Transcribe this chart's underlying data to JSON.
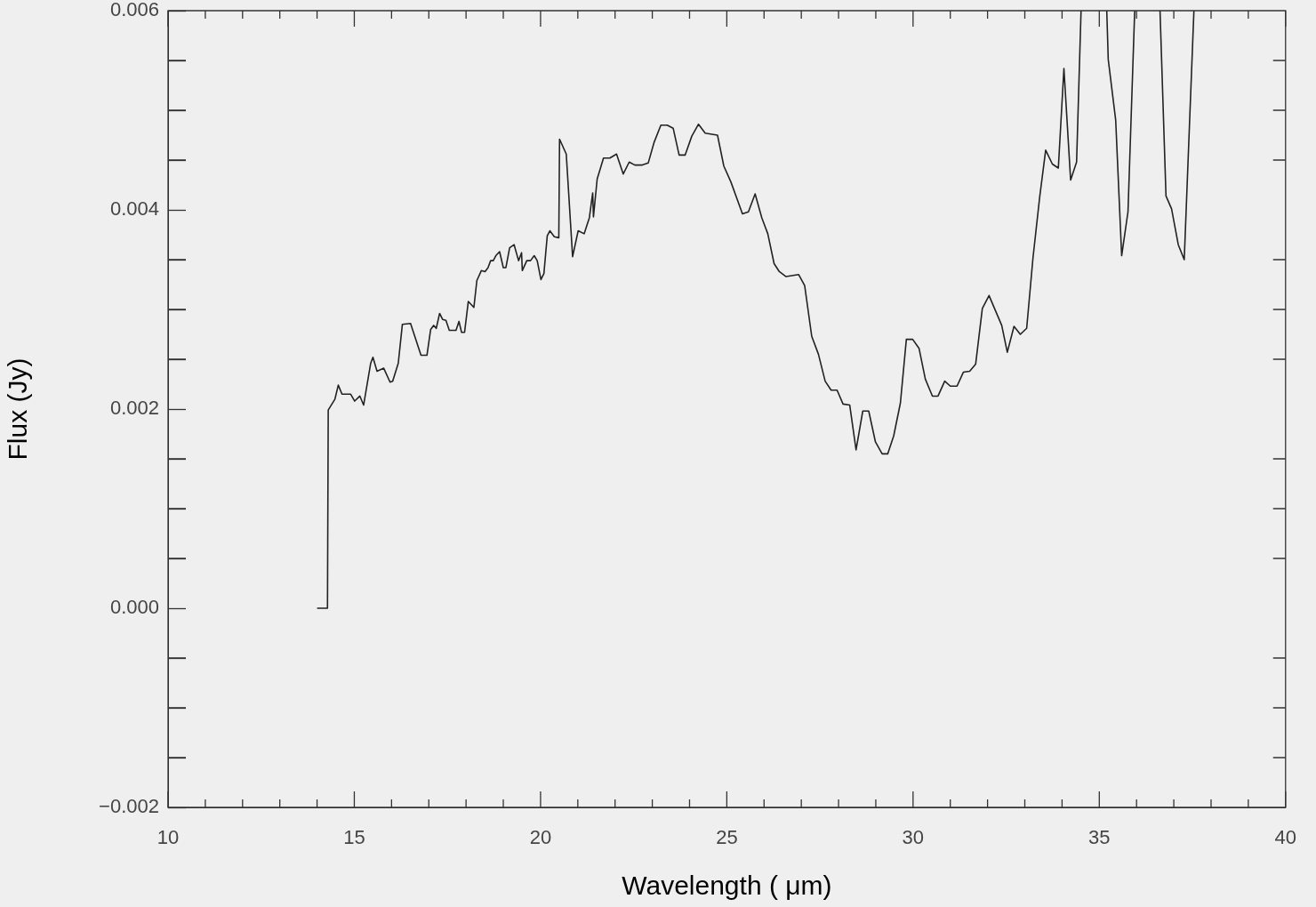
{
  "chart_data": {
    "type": "line",
    "xlabel": "Wavelength ( μm)",
    "ylabel": "Flux (Jy)",
    "legend": false,
    "marker": "none",
    "line_style": "solid",
    "xlim": [
      10,
      40
    ],
    "ylim": [
      -0.002,
      0.006
    ],
    "xticks": [
      10,
      {
        "value": 11,
        "label": null
      },
      {
        "value": 12,
        "label": null
      },
      {
        "value": 13,
        "label": null
      },
      {
        "value": 14,
        "label": null
      },
      15,
      {
        "value": 16,
        "label": null
      },
      {
        "value": 17,
        "label": null
      },
      {
        "value": 18,
        "label": null
      },
      {
        "value": 19,
        "label": null
      },
      20,
      {
        "value": 21,
        "label": null
      },
      {
        "value": 22,
        "label": null
      },
      {
        "value": 23,
        "label": null
      },
      {
        "value": 24,
        "label": null
      },
      25,
      {
        "value": 26,
        "label": null
      },
      {
        "value": 27,
        "label": null
      },
      {
        "value": 28,
        "label": null
      },
      {
        "value": 29,
        "label": null
      },
      30,
      {
        "value": 31,
        "label": null
      },
      {
        "value": 32,
        "label": null
      },
      {
        "value": 33,
        "label": null
      },
      {
        "value": 34,
        "label": null
      },
      35,
      {
        "value": 36,
        "label": null
      },
      {
        "value": 37,
        "label": null
      },
      {
        "value": 38,
        "label": null
      },
      {
        "value": 39,
        "label": null
      },
      40
    ],
    "yticks": [
      {
        "value": -0.002,
        "label": "−0.002"
      },
      {
        "value": -0.0015,
        "label": null
      },
      {
        "value": -0.001,
        "label": null
      },
      {
        "value": -0.0005,
        "label": null
      },
      {
        "value": 0,
        "label": "0.000"
      },
      {
        "value": 0.0005,
        "label": null
      },
      {
        "value": 0.001,
        "label": null
      },
      {
        "value": 0.0015,
        "label": null
      },
      {
        "value": 0.002,
        "label": "0.002"
      },
      {
        "value": 0.0025,
        "label": null
      },
      {
        "value": 0.003,
        "label": null
      },
      {
        "value": 0.0035,
        "label": null
      },
      {
        "value": 0.004,
        "label": "0.004"
      },
      {
        "value": 0.0045,
        "label": null
      },
      {
        "value": 0.005,
        "label": null
      },
      {
        "value": 0.0055,
        "label": null
      },
      {
        "value": 0.006,
        "label": "0.006"
      }
    ],
    "series": [
      {
        "color": "#222222",
        "x": [
          14.0,
          14.28,
          14.3,
          14.48,
          14.57,
          14.67,
          14.9,
          15.01,
          15.15,
          15.25,
          15.44,
          15.5,
          15.61,
          15.79,
          15.96,
          16.03,
          16.18,
          16.29,
          16.51,
          16.79,
          16.95,
          17.05,
          17.13,
          17.2,
          17.29,
          17.37,
          17.46,
          17.55,
          17.73,
          17.81,
          17.88,
          17.96,
          18.06,
          18.21,
          18.29,
          18.41,
          18.51,
          18.59,
          18.66,
          18.73,
          18.8,
          18.9,
          19.0,
          19.07,
          19.17,
          19.29,
          19.41,
          19.49,
          19.51,
          19.63,
          19.73,
          19.83,
          19.91,
          20.01,
          20.09,
          20.18,
          20.25,
          20.37,
          20.49,
          20.51,
          20.69,
          20.86,
          21.01,
          21.17,
          21.31,
          21.4,
          21.42,
          21.52,
          21.69,
          21.86,
          22.04,
          22.22,
          22.38,
          22.53,
          22.73,
          22.89,
          23.05,
          23.23,
          23.4,
          23.56,
          23.72,
          23.88,
          24.06,
          24.24,
          24.42,
          24.75,
          24.92,
          25.11,
          25.42,
          25.58,
          25.76,
          25.94,
          26.1,
          26.27,
          26.41,
          26.59,
          26.93,
          27.09,
          27.28,
          27.46,
          27.64,
          27.8,
          27.96,
          28.12,
          28.3,
          28.47,
          28.65,
          28.81,
          28.99,
          29.17,
          29.32,
          29.48,
          29.66,
          29.82,
          29.99,
          30.16,
          30.33,
          30.52,
          30.67,
          30.85,
          31.0,
          31.18,
          31.35,
          31.52,
          31.68,
          31.86,
          32.04,
          32.21,
          32.38,
          32.53,
          32.71,
          32.88,
          33.05,
          33.22,
          33.4,
          33.56,
          33.74,
          33.9,
          34.05,
          34.23,
          34.39,
          34.51,
          34.8,
          35.2,
          35.24,
          35.44,
          35.6,
          35.77,
          35.95,
          36.3,
          36.63,
          36.79,
          36.94,
          37.12,
          37.28,
          37.54
        ],
        "values": [
          0,
          0,
          0.00199,
          0.0021,
          0.00224,
          0.00215,
          0.00215,
          0.00208,
          0.00213,
          0.00204,
          0.00246,
          0.00252,
          0.00238,
          0.00241,
          0.00227,
          0.00228,
          0.00246,
          0.00285,
          0.00286,
          0.00254,
          0.00254,
          0.0028,
          0.00284,
          0.00281,
          0.00296,
          0.0029,
          0.00289,
          0.00279,
          0.00279,
          0.00288,
          0.00277,
          0.00277,
          0.00308,
          0.00302,
          0.00329,
          0.00339,
          0.00338,
          0.00342,
          0.00349,
          0.00349,
          0.00354,
          0.00358,
          0.00342,
          0.00342,
          0.00362,
          0.00365,
          0.00349,
          0.00357,
          0.00339,
          0.00349,
          0.00349,
          0.00354,
          0.00349,
          0.0033,
          0.00336,
          0.00374,
          0.00379,
          0.00373,
          0.00372,
          0.00471,
          0.00456,
          0.00353,
          0.00379,
          0.00376,
          0.00392,
          0.00417,
          0.00393,
          0.00431,
          0.00452,
          0.00452,
          0.00456,
          0.00436,
          0.00448,
          0.00445,
          0.00445,
          0.00447,
          0.00468,
          0.00485,
          0.00485,
          0.00482,
          0.00455,
          0.00455,
          0.00474,
          0.00486,
          0.00477,
          0.00475,
          0.00444,
          0.00428,
          0.00396,
          0.00398,
          0.00416,
          0.00392,
          0.00376,
          0.00346,
          0.00338,
          0.00333,
          0.00335,
          0.00324,
          0.00273,
          0.00255,
          0.00228,
          0.00219,
          0.00219,
          0.00205,
          0.00204,
          0.00159,
          0.00198,
          0.00198,
          0.00167,
          0.00155,
          0.00155,
          0.00173,
          0.00206,
          0.0027,
          0.0027,
          0.00261,
          0.0023,
          0.00213,
          0.00213,
          0.00228,
          0.00223,
          0.00223,
          0.00237,
          0.00238,
          0.00245,
          0.00301,
          0.00314,
          0.00299,
          0.00284,
          0.00257,
          0.00283,
          0.00275,
          0.00281,
          0.00352,
          0.00413,
          0.0046,
          0.00446,
          0.00442,
          0.00542,
          0.0043,
          0.00448,
          0.006,
          null,
          0.006,
          0.00551,
          0.0049,
          0.00354,
          0.00398,
          0.006,
          null,
          0.006,
          0.00414,
          0.00401,
          0.00365,
          0.0035,
          0.006
        ]
      }
    ]
  }
}
